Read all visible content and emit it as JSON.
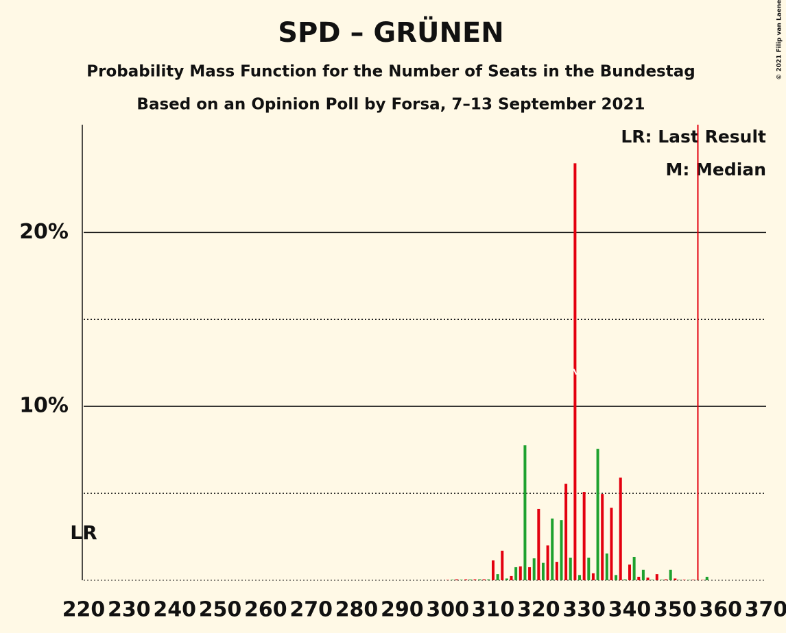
{
  "chart_data": {
    "type": "bar",
    "title": "SPD – GRÜNEN",
    "subtitle": "Probability Mass Function for the Number of Seats in the Bundestag",
    "subtitle2": "Based on an Opinion Poll by Forsa, 7–13 September 2021",
    "legend": [
      "LR: Last Result",
      "M: Median"
    ],
    "lr_label": "LR",
    "copyright": "© 2021 Filip van Laenen",
    "x": [
      300,
      301,
      302,
      303,
      304,
      305,
      306,
      307,
      308,
      309,
      310,
      311,
      312,
      313,
      314,
      315,
      316,
      317,
      318,
      319,
      320,
      321,
      322,
      323,
      324,
      325,
      326,
      327,
      328,
      329,
      330,
      331,
      332,
      333,
      334,
      335,
      336,
      337,
      338,
      339,
      340,
      341,
      342,
      343,
      344,
      345,
      346,
      347,
      348,
      349,
      350,
      351,
      352,
      353,
      354,
      355,
      356,
      357
    ],
    "values": [
      0.02,
      0.03,
      0.05,
      0.03,
      0.05,
      0.04,
      0.05,
      0.05,
      0.05,
      0.05,
      1.14,
      0.35,
      1.7,
      0.1,
      0.24,
      0.75,
      0.8,
      7.76,
      0.75,
      1.26,
      4.1,
      1.0,
      2.0,
      3.55,
      1.06,
      3.46,
      5.55,
      1.3,
      23.98,
      0.3,
      5.08,
      1.3,
      0.4,
      7.56,
      4.96,
      1.54,
      4.17,
      0.3,
      5.9,
      0.05,
      0.9,
      1.34,
      0.2,
      0.6,
      0.15,
      0.03,
      0.35,
      0.03,
      0.05,
      0.6,
      0.1,
      0.02,
      0.03,
      0.02,
      0.03,
      0.02,
      0.02,
      0.2
    ],
    "bar_colors": [
      "#e3000f",
      "#1ea12e"
    ],
    "median": 328,
    "last_result": 355,
    "xlim": [
      220,
      370
    ],
    "xticks": [
      220,
      230,
      240,
      250,
      260,
      270,
      280,
      290,
      300,
      310,
      320,
      330,
      340,
      350,
      360,
      370
    ],
    "ylim": [
      0,
      26.2
    ],
    "yticks": [
      {
        "value": 10,
        "label": "10%"
      },
      {
        "value": 20,
        "label": "20%"
      }
    ],
    "minor_yticks": [
      5,
      15
    ],
    "grid": true
  }
}
